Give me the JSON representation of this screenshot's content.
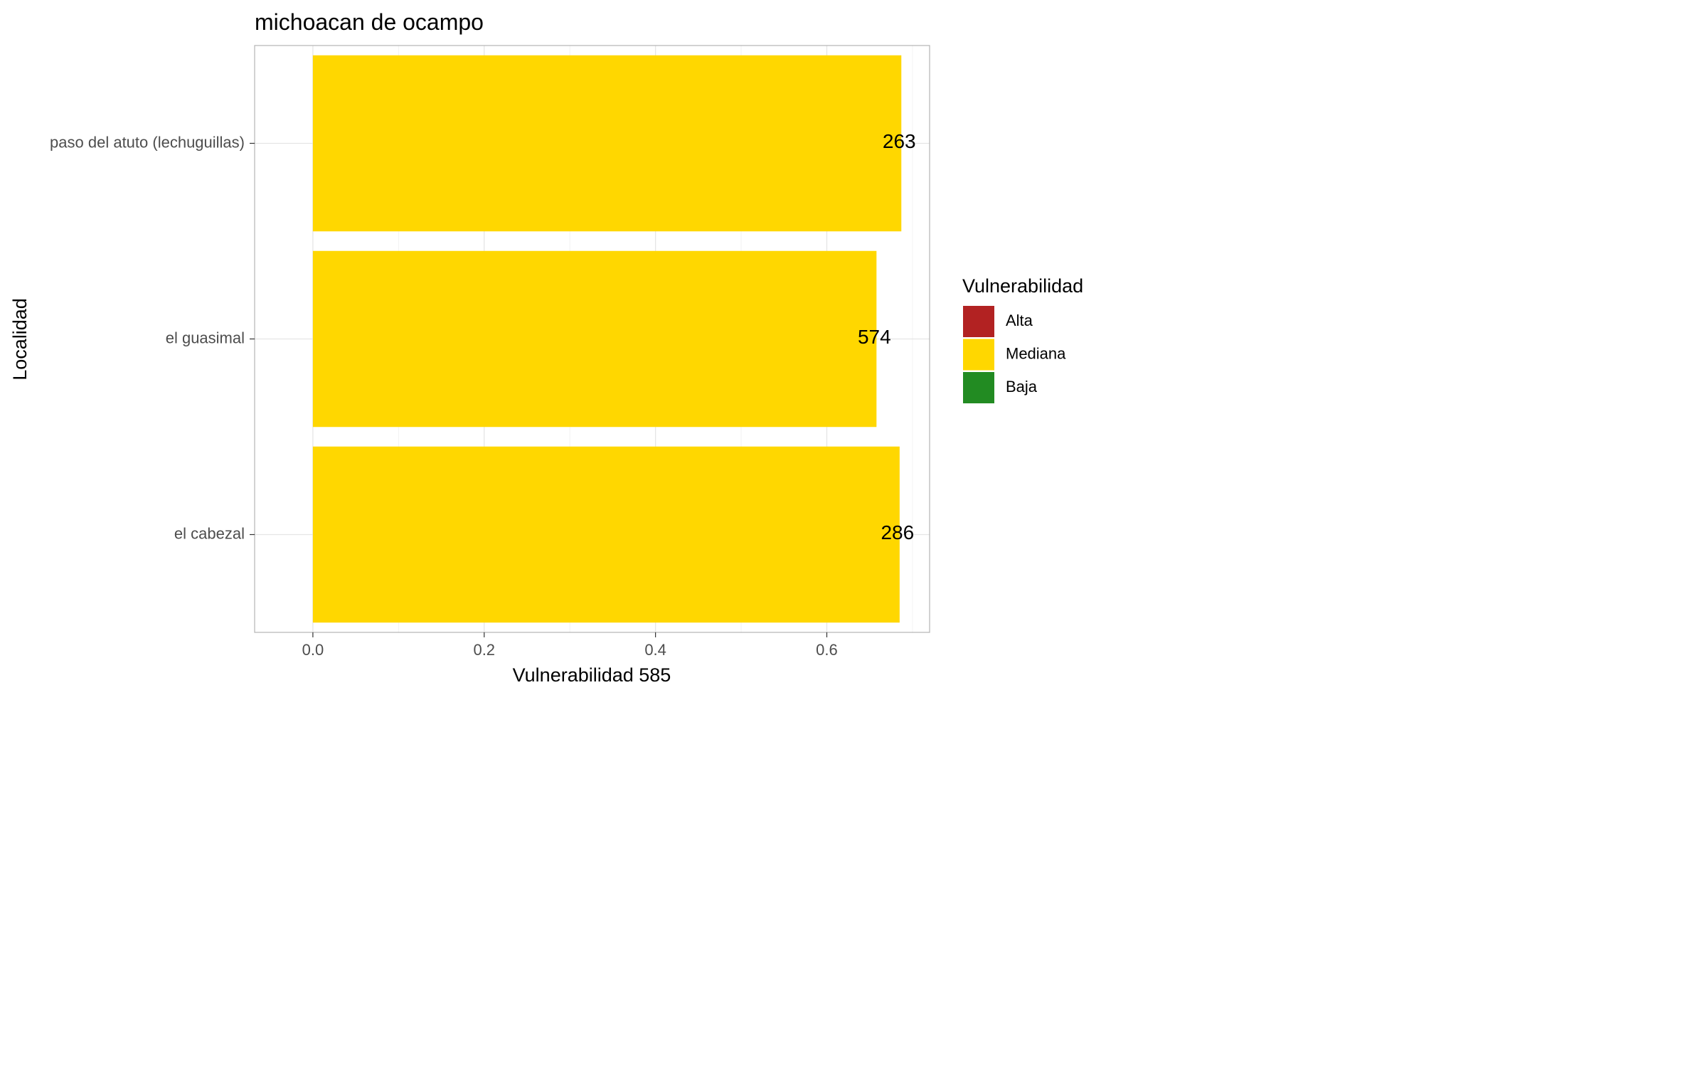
{
  "chart_data": {
    "type": "bar",
    "orientation": "horizontal",
    "title": "michoacan de ocampo",
    "xlabel": "Vulnerabilidad 585",
    "ylabel": "Localidad",
    "categories": [
      "paso del atuto (lechuguillas)",
      "el guasimal",
      "el cabezal"
    ],
    "values": [
      0.687,
      0.658,
      0.685
    ],
    "bar_labels": [
      "263",
      "574",
      "286"
    ],
    "bar_category": [
      "Mediana",
      "Mediana",
      "Mediana"
    ],
    "xlim": [
      -0.068,
      0.72
    ],
    "x_ticks": [
      0.0,
      0.2,
      0.4,
      0.6
    ],
    "x_tick_labels": [
      "0.0",
      "0.2",
      "0.4",
      "0.6"
    ],
    "grid": true,
    "legend": {
      "title": "Vulnerabilidad",
      "position": "right",
      "items": [
        {
          "label": "Alta",
          "color": "#b22222"
        },
        {
          "label": "Mediana",
          "color": "#ffd700"
        },
        {
          "label": "Baja",
          "color": "#228b22"
        }
      ]
    },
    "colors": {
      "bar": "#ffd700",
      "panel_border": "#b3b3b3",
      "grid_major": "#e5e5e5",
      "grid_minor": "#f2f2f2",
      "tick_text": "#4d4d4d",
      "text": "#000000"
    }
  }
}
